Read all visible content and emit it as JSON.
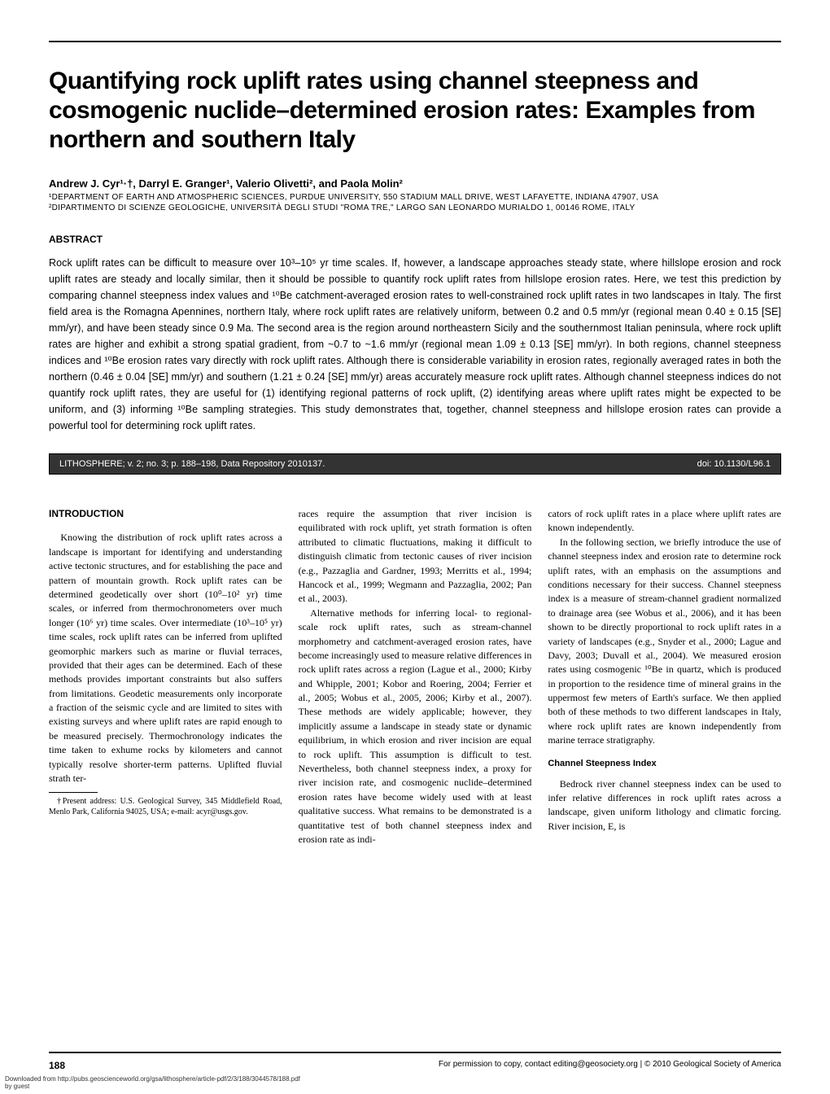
{
  "title": "Quantifying rock uplift rates using channel steepness and cosmogenic nuclide–determined erosion rates: Examples from northern and southern Italy",
  "authors": "Andrew J. Cyr¹·†, Darryl E. Granger¹, Valerio Olivetti², and Paola Molin²",
  "affil1": "¹DEPARTMENT OF EARTH AND ATMOSPHERIC SCIENCES, PURDUE UNIVERSITY, 550 STADIUM MALL DRIVE, WEST LAFAYETTE, INDIANA 47907, USA",
  "affil2": "²DIPARTIMENTO DI SCIENZE GEOLOGICHE, UNIVERSITÀ DEGLI STUDI \"ROMA TRE,\" LARGO SAN LEONARDO MURIALDO 1, 00146 ROME, ITALY",
  "abstract_head": "ABSTRACT",
  "abstract": "Rock uplift rates can be difficult to measure over 10³–10⁵ yr time scales. If, however, a landscape approaches steady state, where hillslope erosion and rock uplift rates are steady and locally similar, then it should be possible to quantify rock uplift rates from hillslope erosion rates. Here, we test this prediction by comparing channel steepness index values and ¹⁰Be catchment-averaged erosion rates to well-constrained rock uplift rates in two landscapes in Italy. The first field area is the Romagna Apennines, northern Italy, where rock uplift rates are relatively uniform, between 0.2 and 0.5 mm/yr (regional mean 0.40 ± 0.15 [SE] mm/yr), and have been steady since 0.9 Ma. The second area is the region around northeastern Sicily and the southernmost Italian peninsula, where rock uplift rates are higher and exhibit a strong spatial gradient, from ~0.7 to ~1.6 mm/yr (regional mean 1.09 ± 0.13 [SE] mm/yr). In both regions, channel steepness indices and ¹⁰Be erosion rates vary directly with rock uplift rates. Although there is considerable variability in erosion rates, regionally averaged rates in both the northern (0.46 ± 0.04 [SE] mm/yr) and southern (1.21 ± 0.24 [SE] mm/yr) areas accurately measure rock uplift rates. Although channel steepness indices do not quantify rock uplift rates, they are useful for (1) identifying regional patterns of rock uplift, (2) identifying areas where uplift rates might be expected to be uniform, and (3) informing ¹⁰Be sampling strategies. This study demonstrates that, together, channel steepness and hillslope erosion rates can provide a powerful tool for determining rock uplift rates.",
  "pub_left": "LITHOSPHERE; v. 2; no. 3; p. 188–198, Data Repository 2010137.",
  "pub_right": "doi: 10.1130/L96.1",
  "intro_head": "INTRODUCTION",
  "col1_p1": "Knowing the distribution of rock uplift rates across a landscape is important for identifying and understanding active tectonic structures, and for establishing the pace and pattern of mountain growth. Rock uplift rates can be determined geodetically over short (10⁰–10² yr) time scales, or inferred from thermochronometers over much longer (10⁶ yr) time scales. Over intermediate (10³–10⁵ yr) time scales, rock uplift rates can be inferred from uplifted geomorphic markers such as marine or fluvial terraces, provided that their ages can be determined. Each of these methods provides important constraints but also suffers from limitations. Geodetic measurements only incorporate a fraction of the seismic cycle and are limited to sites with existing surveys and where uplift rates are rapid enough to be measured precisely. Thermochronology indicates the time taken to exhume rocks by kilometers and cannot typically resolve shorter-term patterns. Uplifted fluvial strath ter-",
  "footnote": "†Present address: U.S. Geological Survey, 345 Middlefield Road, Menlo Park, California 94025, USA; e-mail: acyr@usgs.gov.",
  "col2_p1": "races require the assumption that river incision is equilibrated with rock uplift, yet strath formation is often attributed to climatic fluctuations, making it difficult to distinguish climatic from tectonic causes of river incision (e.g., Pazzaglia and Gardner, 1993; Merritts et al., 1994; Hancock et al., 1999; Wegmann and Pazzaglia, 2002; Pan et al., 2003).",
  "col2_p2": "Alternative methods for inferring local- to regional-scale rock uplift rates, such as stream-channel morphometry and catchment-averaged erosion rates, have become increasingly used to measure relative differences in rock uplift rates across a region (Lague et al., 2000; Kirby and Whipple, 2001; Kobor and Roering, 2004; Ferrier et al., 2005; Wobus et al., 2005, 2006; Kirby et al., 2007). These methods are widely applicable; however, they implicitly assume a landscape in steady state or dynamic equilibrium, in which erosion and river incision are equal to rock uplift. This assumption is difficult to test. Nevertheless, both channel steepness index, a proxy for river incision rate, and cosmogenic nuclide–determined erosion rates have become widely used with at least qualitative success. What remains to be demonstrated is a quantitative test of both channel steepness index and erosion rate as indi-",
  "col3_p1": "cators of rock uplift rates in a place where uplift rates are known independently.",
  "col3_p2": "In the following section, we briefly introduce the use of channel steepness index and erosion rate to determine rock uplift rates, with an emphasis on the assumptions and conditions necessary for their success. Channel steepness index is a measure of stream-channel gradient normalized to drainage area (see Wobus et al., 2006), and it has been shown to be directly proportional to rock uplift rates in a variety of landscapes (e.g., Snyder et al., 2000; Lague and Davy, 2003; Duvall et al., 2004). We measured erosion rates using cosmogenic ¹⁰Be in quartz, which is produced in proportion to the residence time of mineral grains in the uppermost few meters of Earth's surface. We then applied both of these methods to two different landscapes in Italy, where rock uplift rates are known independently from marine terrace stratigraphy.",
  "csi_head": "Channel Steepness Index",
  "col3_p3": "Bedrock river channel steepness index can be used to infer relative differences in rock uplift rates across a landscape, given uniform lithology and climatic forcing. River incision, E, is",
  "page_num": "188",
  "footer_right": "For permission to copy, contact editing@geosociety.org | © 2010 Geological Society of America",
  "download1": "Downloaded from http://pubs.geoscienceworld.org/gsa/lithosphere/article-pdf/2/3/188/3044578/188.pdf",
  "download2": "by guest"
}
